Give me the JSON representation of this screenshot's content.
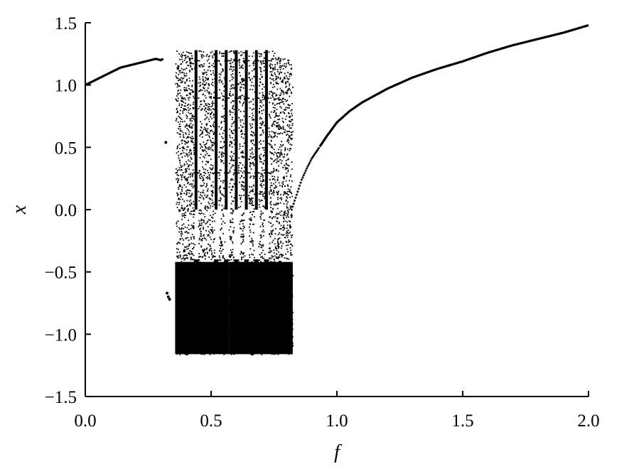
{
  "chart_data": {
    "type": "scatter",
    "title": "",
    "xlabel": "f",
    "ylabel": "x",
    "xlim": [
      0.0,
      2.0
    ],
    "ylim": [
      -1.5,
      1.5
    ],
    "x_ticks": [
      "0.0",
      "0.5",
      "1.0",
      "1.5",
      "2.0"
    ],
    "y_ticks": [
      "1.5",
      "1.0",
      "0.5",
      "0.0",
      "−0.5",
      "−1.0",
      "−1.5"
    ],
    "grid": false,
    "marker_color": "#000000",
    "series": [
      {
        "description": "period-1 branch (low f)",
        "x": [
          0.0,
          0.02,
          0.04,
          0.06,
          0.08,
          0.1,
          0.12,
          0.14,
          0.16,
          0.18,
          0.2,
          0.22,
          0.24,
          0.26,
          0.28,
          0.3,
          0.31
        ],
        "y": [
          1.0,
          1.02,
          1.04,
          1.06,
          1.08,
          1.1,
          1.12,
          1.14,
          1.15,
          1.16,
          1.17,
          1.18,
          1.19,
          1.2,
          1.21,
          1.2,
          1.21
        ]
      },
      {
        "description": "isolated points",
        "x": [
          0.32,
          0.325,
          0.33,
          0.335
        ],
        "y": [
          0.54,
          -0.67,
          -0.7,
          -0.72
        ]
      },
      {
        "description": "chaotic band bounds",
        "f_start": 0.36,
        "f_end": 0.82,
        "x_min": -1.16,
        "x_max": 1.28,
        "periodic_windows": [
          0.44,
          0.52,
          0.56,
          0.6,
          0.64,
          0.68,
          0.72
        ]
      },
      {
        "description": "period-1 branch (high f)",
        "x": [
          0.82,
          0.84,
          0.86,
          0.88,
          0.9,
          0.93,
          0.96,
          1.0,
          1.05,
          1.1,
          1.2,
          1.3,
          1.4,
          1.5,
          1.6,
          1.7,
          1.8,
          1.9,
          2.0
        ],
        "y": [
          0.0,
          0.12,
          0.24,
          0.33,
          0.41,
          0.5,
          0.59,
          0.7,
          0.79,
          0.86,
          0.97,
          1.06,
          1.13,
          1.19,
          1.26,
          1.32,
          1.37,
          1.42,
          1.48
        ]
      }
    ]
  }
}
